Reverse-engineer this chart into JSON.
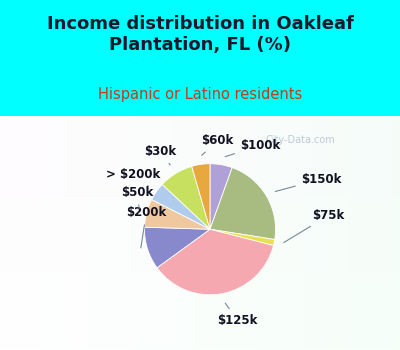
{
  "title": "Income distribution in Oakleaf\nPlantation, FL (%)",
  "subtitle": "Hispanic or Latino residents",
  "slices": [
    {
      "label": "$100k",
      "value": 5.5,
      "color": "#b0a0d8"
    },
    {
      "label": "$150k",
      "value": 22.0,
      "color": "#a8bc82"
    },
    {
      "label": "$75k",
      "value": 1.5,
      "color": "#e8e050"
    },
    {
      "label": "$125k",
      "value": 36.0,
      "color": "#f5a8b0"
    },
    {
      "label": "$200k",
      "value": 10.5,
      "color": "#8888cc"
    },
    {
      "label": "$50k",
      "value": 7.0,
      "color": "#f0c8a0"
    },
    {
      "label": "> $200k",
      "value": 4.5,
      "color": "#b0ccec"
    },
    {
      "label": "$30k",
      "value": 8.5,
      "color": "#c8e060"
    },
    {
      "label": "$60k",
      "value": 4.5,
      "color": "#e8a840"
    }
  ],
  "background_top": "#00ffff",
  "title_color": "#1a1a2e",
  "subtitle_color": "#b84020",
  "title_fontsize": 13,
  "subtitle_fontsize": 10.5,
  "label_fontsize": 8.5,
  "watermark": "City-Data.com",
  "watermark_color": "#aabbcc"
}
